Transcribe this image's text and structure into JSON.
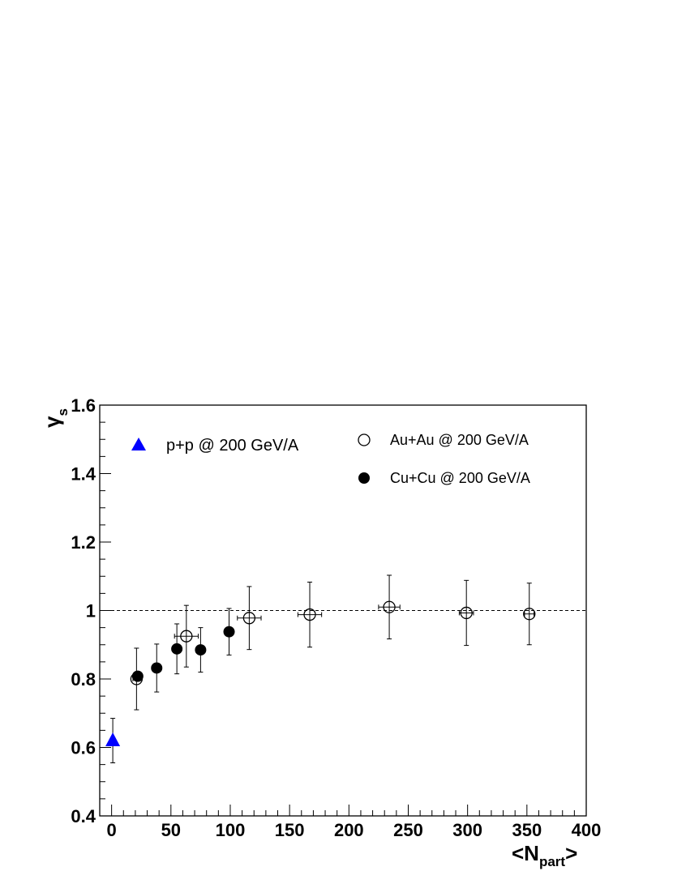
{
  "chart_data": {
    "type": "scatter",
    "xlabel": {
      "prefix": "<N",
      "sub": "part",
      "suffix": ">"
    },
    "ylabel": {
      "symbol": "γ",
      "sub": "s"
    },
    "xlim": [
      -10,
      400
    ],
    "ylim": [
      0.4,
      1.6
    ],
    "x_ticks": [
      "0",
      "50",
      "100",
      "150",
      "200",
      "250",
      "300",
      "350",
      "400"
    ],
    "y_ticks": [
      "0.4",
      "0.6",
      "0.8",
      "1",
      "1.2",
      "1.4",
      "1.6"
    ],
    "reference_line": {
      "y": 1.0,
      "style": "dashed"
    },
    "series": [
      {
        "name": "p+p @ 200 GeV/A",
        "marker": "triangle",
        "color": "#0000ff",
        "points": [
          {
            "x": 1,
            "y": 0.62,
            "yerr": 0.065,
            "xerr": 0
          }
        ]
      },
      {
        "name": "Au+Au @ 200 GeV/A",
        "marker": "open-circle",
        "color": "#000000",
        "points": [
          {
            "x": 21,
            "y": 0.8,
            "yerr": 0.09,
            "xerr": 3
          },
          {
            "x": 63,
            "y": 0.925,
            "yerr": 0.09,
            "xerr": 10
          },
          {
            "x": 116,
            "y": 0.978,
            "yerr": 0.092,
            "xerr": 10
          },
          {
            "x": 167,
            "y": 0.988,
            "yerr": 0.095,
            "xerr": 10
          },
          {
            "x": 234,
            "y": 1.01,
            "yerr": 0.093,
            "xerr": 9
          },
          {
            "x": 299,
            "y": 0.993,
            "yerr": 0.095,
            "xerr": 6
          },
          {
            "x": 352,
            "y": 0.99,
            "yerr": 0.09,
            "xerr": 4
          }
        ]
      },
      {
        "name": "Cu+Cu @ 200 GeV/A",
        "marker": "filled-circle",
        "color": "#000000",
        "points": [
          {
            "x": 22,
            "y": 0.808,
            "yerr": 0,
            "xerr": 0
          },
          {
            "x": 38,
            "y": 0.832,
            "yerr": 0.07,
            "xerr": 0
          },
          {
            "x": 55,
            "y": 0.888,
            "yerr": 0.073,
            "xerr": 0
          },
          {
            "x": 75,
            "y": 0.885,
            "yerr": 0.065,
            "xerr": 0
          },
          {
            "x": 99,
            "y": 0.938,
            "yerr": 0.068,
            "xerr": 0
          }
        ]
      }
    ],
    "legend": {
      "placement": "top",
      "entries": [
        "p+p @ 200 GeV/A",
        "Au+Au @ 200 GeV/A",
        "Cu+Cu @ 200 GeV/A"
      ]
    }
  }
}
